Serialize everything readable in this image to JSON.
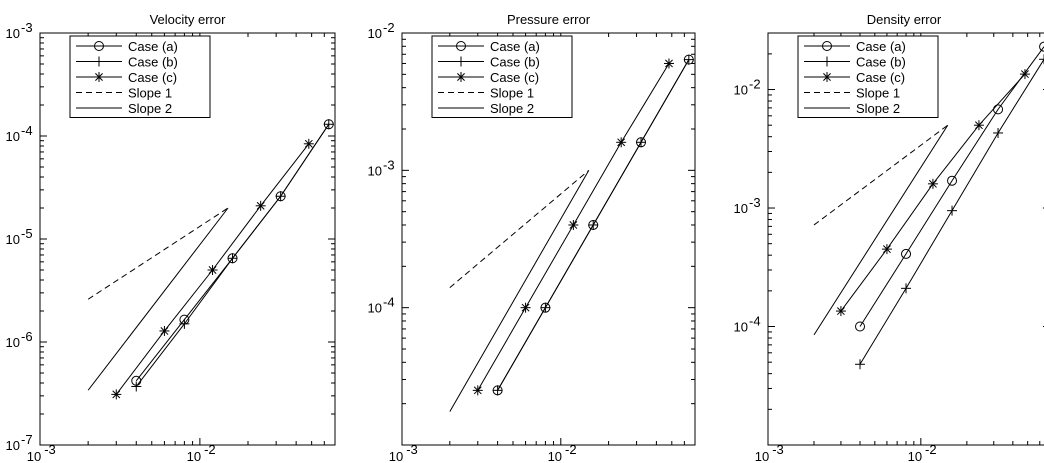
{
  "chart_data": [
    {
      "type": "line",
      "title": "Velocity error",
      "xscale": "log",
      "yscale": "log",
      "xlim": [
        0.001,
        0.07
      ],
      "ylim": [
        1e-07,
        0.001
      ],
      "legend": {
        "placement": "top-left",
        "entries": [
          "Case (a)",
          "Case (b)",
          "Case (c)",
          "Slope 1",
          "Slope 2"
        ]
      },
      "xticks": [
        {
          "label": "10",
          "exp": "-3"
        },
        {
          "label": "10",
          "exp": "-2"
        }
      ],
      "yticks": [
        {
          "label": "10",
          "exp": "-3",
          "value": 0.001
        },
        {
          "label": "10",
          "exp": "-4",
          "value": 0.0001
        },
        {
          "label": "10",
          "exp": "-5",
          "value": 1e-05
        },
        {
          "label": "10",
          "exp": "-6",
          "value": 1e-06
        },
        {
          "label": "10",
          "exp": "-7",
          "value": 1e-07
        }
      ],
      "series": [
        {
          "name": "Case (a)",
          "marker": "circle",
          "style": "solid",
          "x": [
            0.004,
            0.008,
            0.016,
            0.032,
            0.064
          ],
          "y": [
            4.2e-07,
            1.65e-06,
            6.5e-06,
            2.6e-05,
            0.00013
          ]
        },
        {
          "name": "Case (b)",
          "marker": "plus",
          "style": "solid",
          "x": [
            0.004,
            0.008,
            0.016,
            0.032,
            0.064
          ],
          "y": [
            3.7e-07,
            1.5e-06,
            6.5e-06,
            2.6e-05,
            0.00013
          ]
        },
        {
          "name": "Case (c)",
          "marker": "star",
          "style": "solid",
          "x": [
            0.003,
            0.006,
            0.012,
            0.024,
            0.048
          ],
          "y": [
            3.1e-07,
            1.28e-06,
            5e-06,
            2.1e-05,
            8.4e-05
          ]
        },
        {
          "name": "Slope 1",
          "marker": "none",
          "style": "dashed",
          "x": [
            0.002,
            0.015
          ],
          "y": [
            2.6e-06,
            2e-05
          ]
        },
        {
          "name": "Slope 2",
          "marker": "none",
          "style": "solid",
          "x": [
            0.002,
            0.015
          ],
          "y": [
            3.4e-07,
            2e-05
          ]
        }
      ]
    },
    {
      "type": "line",
      "title": "Pressure error",
      "xscale": "log",
      "yscale": "log",
      "xlim": [
        0.001,
        0.07
      ],
      "ylim": [
        1e-05,
        0.01
      ],
      "legend": {
        "placement": "top-left",
        "entries": [
          "Case (a)",
          "Case (b)",
          "Case (c)",
          "Slope 1",
          "Slope 2"
        ]
      },
      "xticks": [
        {
          "label": "10",
          "exp": "-3"
        },
        {
          "label": "10",
          "exp": "-2"
        }
      ],
      "yticks": [
        {
          "label": "10",
          "exp": "-2",
          "value": 0.01
        },
        {
          "label": "10",
          "exp": "-3",
          "value": 0.001
        },
        {
          "label": "10",
          "exp": "-4",
          "value": 0.0001
        }
      ],
      "series": [
        {
          "name": "Case (a)",
          "marker": "circle",
          "style": "solid",
          "x": [
            0.004,
            0.008,
            0.016,
            0.032,
            0.064
          ],
          "y": [
            2.5e-05,
            0.0001,
            0.0004,
            0.0016,
            0.0064
          ]
        },
        {
          "name": "Case (b)",
          "marker": "plus",
          "style": "solid",
          "x": [
            0.004,
            0.008,
            0.016,
            0.032,
            0.064
          ],
          "y": [
            2.5e-05,
            0.0001,
            0.0004,
            0.0016,
            0.0064
          ]
        },
        {
          "name": "Case (c)",
          "marker": "star",
          "style": "solid",
          "x": [
            0.003,
            0.006,
            0.012,
            0.024,
            0.048
          ],
          "y": [
            2.5e-05,
            0.0001,
            0.0004,
            0.0016,
            0.006
          ]
        },
        {
          "name": "Slope 1",
          "marker": "none",
          "style": "dashed",
          "x": [
            0.002,
            0.015
          ],
          "y": [
            0.00014,
            0.001
          ]
        },
        {
          "name": "Slope 2",
          "marker": "none",
          "style": "solid",
          "x": [
            0.002,
            0.015
          ],
          "y": [
            1.75e-05,
            0.001
          ]
        }
      ]
    },
    {
      "type": "line",
      "title": "Density error",
      "xscale": "log",
      "yscale": "log",
      "xlim": [
        0.001,
        0.07
      ],
      "ylim": [
        1e-05,
        0.03
      ],
      "legend": {
        "placement": "top-left",
        "entries": [
          "Case (a)",
          "Case (b)",
          "Case (c)",
          "Slope 1",
          "Slope 2"
        ]
      },
      "xticks": [
        {
          "label": "10",
          "exp": "-3"
        },
        {
          "label": "10",
          "exp": "-2"
        }
      ],
      "yticks": [
        {
          "label": "10",
          "exp": "-2",
          "value": 0.01
        },
        {
          "label": "10",
          "exp": "-3",
          "value": 0.001
        },
        {
          "label": "10",
          "exp": "-4",
          "value": 0.0001
        }
      ],
      "series": [
        {
          "name": "Case (a)",
          "marker": "circle",
          "style": "solid",
          "x": [
            0.004,
            0.008,
            0.016,
            0.032,
            0.064
          ],
          "y": [
            0.0001,
            0.00041,
            0.0017,
            0.0068,
            0.023
          ]
        },
        {
          "name": "Case (b)",
          "marker": "plus",
          "style": "solid",
          "x": [
            0.004,
            0.008,
            0.016,
            0.032,
            0.064
          ],
          "y": [
            4.8e-05,
            0.00021,
            0.00095,
            0.0043,
            0.018
          ]
        },
        {
          "name": "Case (c)",
          "marker": "star",
          "style": "solid",
          "x": [
            0.003,
            0.006,
            0.012,
            0.024,
            0.048
          ],
          "y": [
            0.000135,
            0.00045,
            0.0016,
            0.005,
            0.0135
          ]
        },
        {
          "name": "Slope 1",
          "marker": "none",
          "style": "dashed",
          "x": [
            0.002,
            0.015
          ],
          "y": [
            0.00072,
            0.005
          ]
        },
        {
          "name": "Slope 2",
          "marker": "none",
          "style": "solid",
          "x": [
            0.002,
            0.015
          ],
          "y": [
            8.5e-05,
            0.005
          ]
        }
      ]
    }
  ]
}
